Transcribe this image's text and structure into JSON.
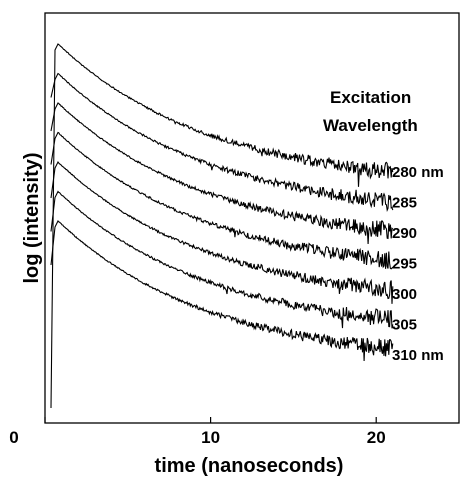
{
  "chart_data": {
    "type": "line",
    "title": "",
    "xlabel": "time (nanoseconds)",
    "ylabel": "log (intensity)",
    "xlim": [
      0,
      25
    ],
    "x_ticks": [
      "0",
      "10",
      "20"
    ],
    "x_tick_values": [
      0,
      10,
      20
    ],
    "y_scale": "log (arbitrary units, no tick labels)",
    "grid": false,
    "legend_title": [
      "Excitation",
      "Wavelength"
    ],
    "legend_placement": "right",
    "series": [
      {
        "name": "280 nm",
        "onset": 2.0,
        "peak_time": 2.5,
        "end_time": 21.0,
        "noise": "increases with time"
      },
      {
        "name": "285",
        "onset": 2.0,
        "peak_time": 2.5,
        "end_time": 21.0,
        "noise": "increases with time"
      },
      {
        "name": "290",
        "onset": 2.0,
        "peak_time": 2.5,
        "end_time": 21.0,
        "noise": "increases with time"
      },
      {
        "name": "295",
        "onset": 2.0,
        "peak_time": 2.5,
        "end_time": 21.0,
        "noise": "increases with time"
      },
      {
        "name": "300",
        "onset": 2.0,
        "peak_time": 2.5,
        "end_time": 21.0,
        "noise": "increases with time"
      },
      {
        "name": "305",
        "onset": 2.0,
        "peak_time": 2.5,
        "end_time": 21.0,
        "noise": "increases with time"
      },
      {
        "name": "310 nm",
        "onset": 2.0,
        "peak_time": 2.5,
        "end_time": 21.0,
        "noise": "increases with time"
      }
    ],
    "line_color": "#000000"
  }
}
